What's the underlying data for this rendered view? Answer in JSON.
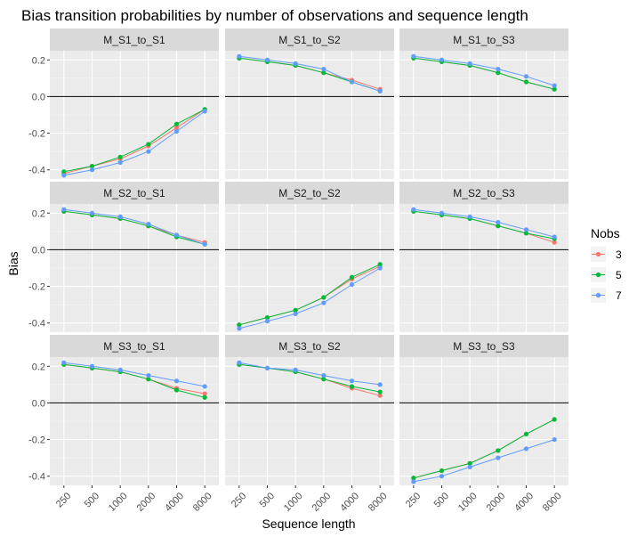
{
  "chart_data": {
    "type": "line",
    "title": "Bias transition probabilities by number of observations and sequence length",
    "xlabel": "Sequence length",
    "ylabel": "Bias",
    "x_categories": [
      "250",
      "500",
      "1000",
      "2000",
      "4000",
      "8000"
    ],
    "y_ticks": [
      0.2,
      0.0,
      -0.2,
      -0.4
    ],
    "y_tick_labels": [
      "0.2",
      "0.0",
      "-0.2",
      "-0.4"
    ],
    "ylim": [
      -0.45,
      0.25
    ],
    "reference_line_y": 0,
    "grid": true,
    "legend": {
      "title": "Nobs",
      "placement": "right",
      "entries": [
        {
          "label": "3",
          "color": "#F8766D"
        },
        {
          "label": "5",
          "color": "#00BA38"
        },
        {
          "label": "7",
          "color": "#619CFF"
        }
      ]
    },
    "panels": [
      {
        "name": "M_S1_to_S1",
        "series": [
          {
            "name": "3",
            "values": [
              -0.42,
              -0.38,
              -0.34,
              -0.27,
              -0.17,
              -0.07
            ]
          },
          {
            "name": "5",
            "values": [
              -0.41,
              -0.38,
              -0.33,
              -0.26,
              -0.15,
              -0.07
            ]
          },
          {
            "name": "7",
            "values": [
              -0.43,
              -0.4,
              -0.36,
              -0.3,
              -0.19,
              -0.08
            ]
          }
        ]
      },
      {
        "name": "M_S1_to_S2",
        "series": [
          {
            "name": "3",
            "values": [
              0.21,
              0.19,
              0.17,
              0.13,
              0.09,
              0.04
            ]
          },
          {
            "name": "5",
            "values": [
              0.21,
              0.19,
              0.17,
              0.13,
              0.08,
              0.03
            ]
          },
          {
            "name": "7",
            "values": [
              0.22,
              0.2,
              0.18,
              0.15,
              0.08,
              0.03
            ]
          }
        ]
      },
      {
        "name": "M_S1_to_S3",
        "series": [
          {
            "name": "3",
            "values": [
              0.21,
              0.19,
              0.17,
              0.13,
              0.08,
              0.04
            ]
          },
          {
            "name": "5",
            "values": [
              0.21,
              0.19,
              0.17,
              0.13,
              0.08,
              0.04
            ]
          },
          {
            "name": "7",
            "values": [
              0.22,
              0.2,
              0.18,
              0.15,
              0.11,
              0.06
            ]
          }
        ]
      },
      {
        "name": "M_S2_to_S1",
        "series": [
          {
            "name": "3",
            "values": [
              0.21,
              0.19,
              0.17,
              0.13,
              0.08,
              0.04
            ]
          },
          {
            "name": "5",
            "values": [
              0.21,
              0.19,
              0.17,
              0.13,
              0.07,
              0.03
            ]
          },
          {
            "name": "7",
            "values": [
              0.22,
              0.2,
              0.18,
              0.14,
              0.08,
              0.03
            ]
          }
        ]
      },
      {
        "name": "M_S2_to_S2",
        "series": [
          {
            "name": "3",
            "values": [
              -0.41,
              -0.37,
              -0.33,
              -0.26,
              -0.16,
              -0.09
            ]
          },
          {
            "name": "5",
            "values": [
              -0.41,
              -0.37,
              -0.33,
              -0.26,
              -0.15,
              -0.08
            ]
          },
          {
            "name": "7",
            "values": [
              -0.43,
              -0.39,
              -0.35,
              -0.29,
              -0.19,
              -0.1
            ]
          }
        ]
      },
      {
        "name": "M_S2_to_S3",
        "series": [
          {
            "name": "3",
            "values": [
              0.21,
              0.19,
              0.17,
              0.13,
              0.09,
              0.04
            ]
          },
          {
            "name": "5",
            "values": [
              0.21,
              0.19,
              0.17,
              0.13,
              0.09,
              0.06
            ]
          },
          {
            "name": "7",
            "values": [
              0.22,
              0.2,
              0.18,
              0.15,
              0.11,
              0.07
            ]
          }
        ]
      },
      {
        "name": "M_S3_to_S1",
        "series": [
          {
            "name": "3",
            "values": [
              0.21,
              0.19,
              0.17,
              0.13,
              0.08,
              0.05
            ]
          },
          {
            "name": "5",
            "values": [
              0.21,
              0.19,
              0.17,
              0.13,
              0.07,
              0.03
            ]
          },
          {
            "name": "7",
            "values": [
              0.22,
              0.2,
              0.18,
              0.15,
              0.12,
              0.09
            ]
          }
        ]
      },
      {
        "name": "M_S3_to_S2",
        "series": [
          {
            "name": "3",
            "values": [
              0.21,
              0.19,
              0.17,
              0.13,
              0.08,
              0.04
            ]
          },
          {
            "name": "5",
            "values": [
              0.21,
              0.19,
              0.17,
              0.13,
              0.09,
              0.06
            ]
          },
          {
            "name": "7",
            "values": [
              0.22,
              0.19,
              0.18,
              0.15,
              0.12,
              0.1
            ]
          }
        ]
      },
      {
        "name": "M_S3_to_S3",
        "series": [
          {
            "name": "3",
            "values": [
              -0.41,
              -0.37,
              -0.33,
              -0.26,
              -0.17,
              -0.09
            ]
          },
          {
            "name": "5",
            "values": [
              -0.41,
              -0.37,
              -0.33,
              -0.26,
              -0.17,
              -0.09
            ]
          },
          {
            "name": "7",
            "values": [
              -0.43,
              -0.4,
              -0.35,
              -0.3,
              -0.25,
              -0.2
            ]
          }
        ]
      }
    ]
  }
}
